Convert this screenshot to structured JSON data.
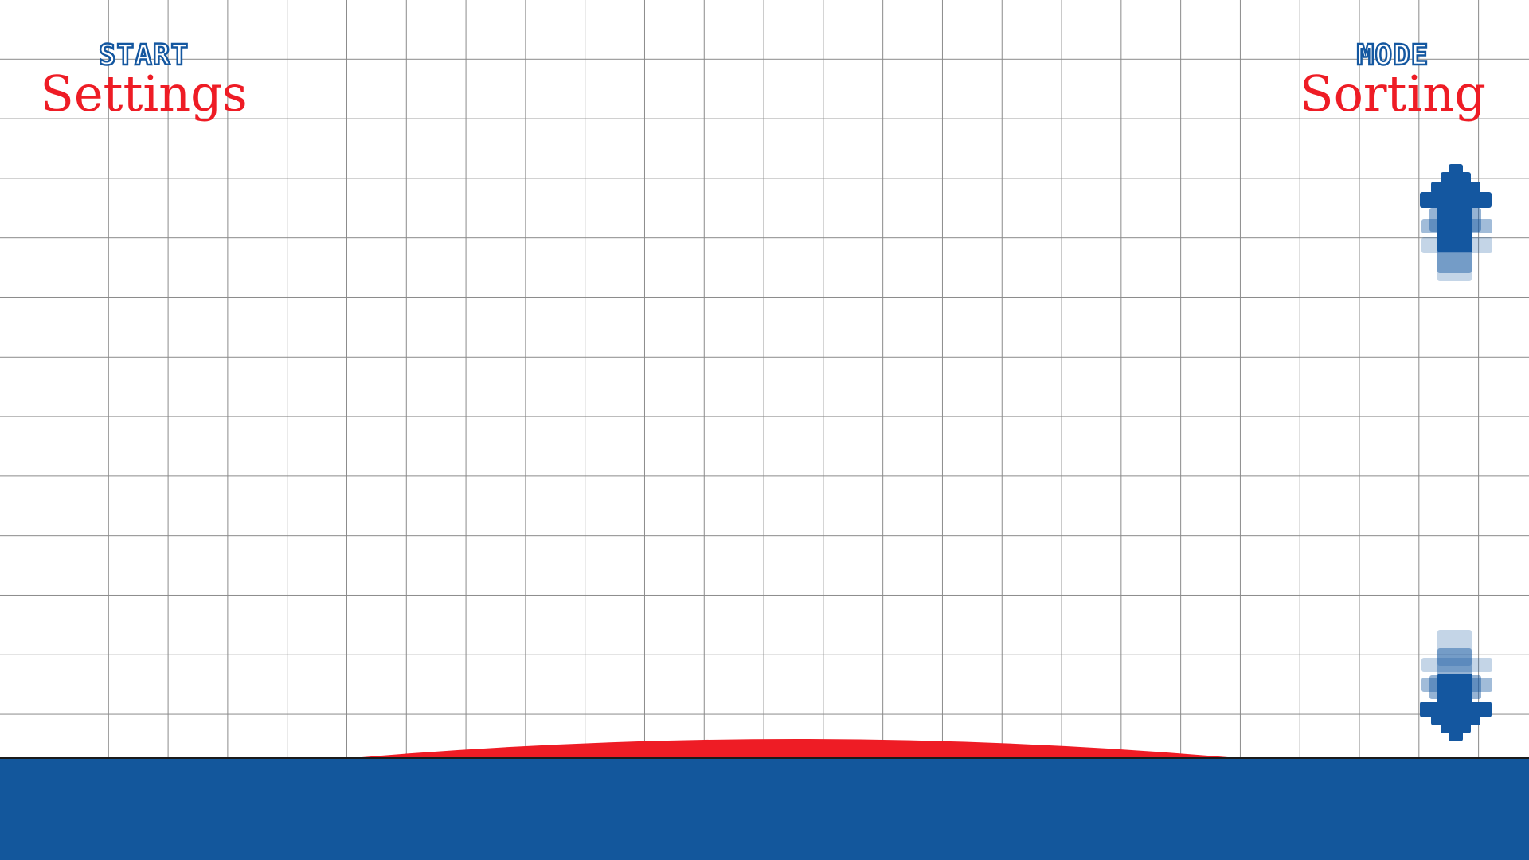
{
  "menu": {
    "left": {
      "caption": "START",
      "title": "Settings"
    },
    "right": {
      "caption": "MODE",
      "title": "Sorting"
    }
  },
  "controls": {
    "up_icon": "arrow-up-icon",
    "down_icon": "arrow-down-icon"
  },
  "colors": {
    "background": "#ffffff",
    "grid_line": "#8a8a8a",
    "title_red": "#ee1c25",
    "caption_blue": "#1457a0",
    "ground_blue": "#13579c",
    "platform_red": "#ee1c25",
    "arrow_blue": "#1457a0"
  }
}
